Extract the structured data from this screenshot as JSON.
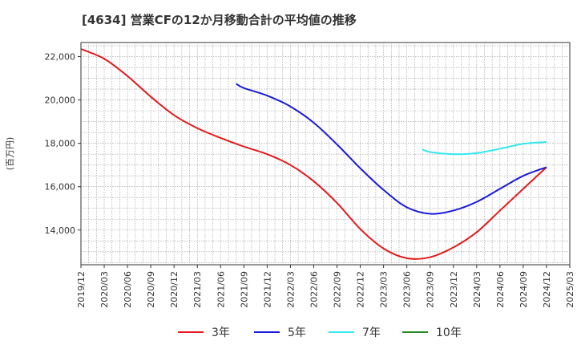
{
  "chart_data": {
    "type": "line",
    "title": "[4634]  営業CFの12か月移動合計の平均値の推移",
    "ylabel": "(百万円)",
    "xlabel": "",
    "ylim": [
      12400,
      22650
    ],
    "xlim": [
      "2019-12",
      "2025-03"
    ],
    "grid": true,
    "legend_position": "bottom",
    "y_ticks": [
      "14,000",
      "16,000",
      "18,000",
      "20,000",
      "22,000"
    ],
    "y_tick_values": [
      14000,
      16000,
      18000,
      20000,
      22000
    ],
    "x_ticks": [
      "2019/12",
      "2020/03",
      "2020/06",
      "2020/09",
      "2020/12",
      "2021/03",
      "2021/06",
      "2021/09",
      "2021/12",
      "2022/03",
      "2022/06",
      "2022/09",
      "2022/12",
      "2023/03",
      "2023/06",
      "2023/09",
      "2023/12",
      "2024/03",
      "2024/06",
      "2024/09",
      "2024/12",
      "2025/03"
    ],
    "series": [
      {
        "name": "3年",
        "color": "#e41a1c",
        "x": [
          "2019-12",
          "2020-03",
          "2020-06",
          "2020-09",
          "2020-12",
          "2021-03",
          "2021-06",
          "2021-09",
          "2021-12",
          "2022-03",
          "2022-06",
          "2022-09",
          "2022-12",
          "2023-03",
          "2023-06",
          "2023-09",
          "2023-12",
          "2024-03",
          "2024-06",
          "2024-09",
          "2024-12"
        ],
        "y": [
          22350,
          21900,
          21100,
          20150,
          19300,
          18700,
          18250,
          17850,
          17500,
          17000,
          16250,
          15250,
          14050,
          13150,
          12700,
          12750,
          13200,
          13900,
          14900,
          15900,
          16900
        ]
      },
      {
        "name": "5年",
        "color": "#1a1adc",
        "x": [
          "2021-08",
          "2021-09",
          "2021-12",
          "2022-03",
          "2022-06",
          "2022-09",
          "2022-12",
          "2023-03",
          "2023-06",
          "2023-09",
          "2023-12",
          "2024-03",
          "2024-06",
          "2024-09",
          "2024-12"
        ],
        "y": [
          20750,
          20550,
          20200,
          19700,
          18950,
          17950,
          16850,
          15850,
          15050,
          14750,
          14900,
          15300,
          15900,
          16500,
          16900
        ]
      },
      {
        "name": "7年",
        "color": "#33e8ee",
        "x": [
          "2023-08",
          "2023-09",
          "2023-12",
          "2024-03",
          "2024-06",
          "2024-09",
          "2024-12"
        ],
        "y": [
          17720,
          17600,
          17500,
          17550,
          17750,
          17980,
          18060
        ]
      },
      {
        "name": "10年",
        "color": "#228b22",
        "x": [],
        "y": []
      }
    ]
  }
}
